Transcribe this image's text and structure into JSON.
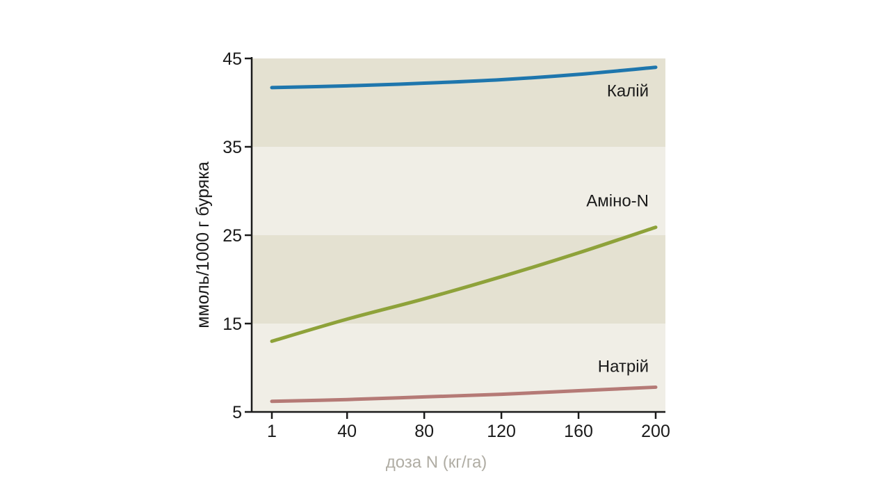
{
  "chart_data": {
    "type": "line",
    "title": "",
    "xlabel": "доза N (кг/га)",
    "ylabel": "ммоль/1000 г буряка",
    "x_ticks": [
      1,
      40,
      80,
      120,
      160,
      200
    ],
    "y_ticks": [
      5,
      15,
      25,
      35,
      45
    ],
    "xlim": [
      1,
      200
    ],
    "ylim": [
      5,
      45
    ],
    "grid": false,
    "bands": [
      {
        "from": 35,
        "to": 45,
        "color": "#e4e1d1"
      },
      {
        "from": 25,
        "to": 35,
        "color": "#f0eee6"
      },
      {
        "from": 15,
        "to": 25,
        "color": "#e4e1d1"
      },
      {
        "from": 5,
        "to": 15,
        "color": "#f0eee6"
      }
    ],
    "colors": {
      "xlabel": "#b0ada4",
      "axis": "#1a1a1a"
    },
    "series": [
      {
        "name": "Калій",
        "color": "#1e76ad",
        "x": [
          1,
          40,
          80,
          120,
          160,
          200
        ],
        "y": [
          41.7,
          41.9,
          42.2,
          42.6,
          43.2,
          44.0
        ]
      },
      {
        "name": "Аміно-N",
        "color": "#8ea23a",
        "x": [
          1,
          40,
          80,
          120,
          160,
          200
        ],
        "y": [
          13.0,
          15.5,
          17.8,
          20.3,
          23.0,
          25.9
        ]
      },
      {
        "name": "Натрій",
        "color": "#b57a76",
        "x": [
          1,
          40,
          80,
          120,
          160,
          200
        ],
        "y": [
          6.2,
          6.4,
          6.7,
          7.0,
          7.4,
          7.8
        ]
      }
    ]
  }
}
